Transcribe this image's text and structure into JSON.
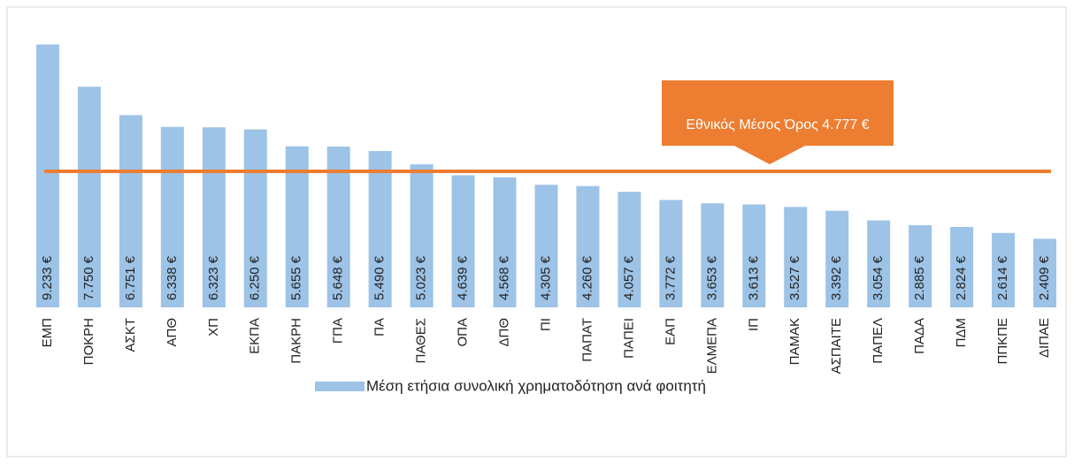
{
  "chart_data": {
    "type": "bar",
    "categories": [
      "ΕΜΠ",
      "ΠΟΚΡΗ",
      "ΑΣΚΤ",
      "ΑΠΘ",
      "ΧΠ",
      "ΕΚΠΑ",
      "ΠΑΚΡΗ",
      "ΓΠΑ",
      "ΠΑ",
      "ΠΑΘΕΣ",
      "ΟΠΑ",
      "ΔΠΘ",
      "ΠΙ",
      "ΠΑΠΑΤ",
      "ΠΑΠΕΙ",
      "ΕΑΠ",
      "ΕΛΜΕΠΑ",
      "ΙΠ",
      "ΠΑΜΑΚ",
      "ΑΣΠΑΙΤΕ",
      "ΠΑΠΕΛ",
      "ΠΑΔΑ",
      "ΠΔΜ",
      "ΠΠΚΠΕ",
      "ΔΙΠΑΕ"
    ],
    "series": [
      {
        "name": "Μέση ετήσια συνολική χρηματοδότηση ανά φοιτητή",
        "color": "#9dc3e6",
        "values": [
          9233,
          7750,
          6751,
          6338,
          6323,
          6250,
          5655,
          5648,
          5490,
          5023,
          4639,
          4568,
          4305,
          4260,
          4057,
          3772,
          3653,
          3613,
          3527,
          3392,
          3054,
          2885,
          2824,
          2614,
          2409
        ],
        "value_labels": [
          "9.233 €",
          "7.750 €",
          "6.751 €",
          "6.338 €",
          "6.323 €",
          "6.250 €",
          "5.655 €",
          "5.648 €",
          "5.490 €",
          "5.023 €",
          "4.639 €",
          "4.568 €",
          "4.305 €",
          "4.260 €",
          "4.057 €",
          "3.772 €",
          "3.653 €",
          "3.613 €",
          "3.527 €",
          "3.392 €",
          "3.054 €",
          "2.885 €",
          "2.824 €",
          "2.614 €",
          "2.409 €"
        ]
      }
    ],
    "ylim": [
      0,
      9400
    ],
    "reference_line": {
      "value": 4777,
      "color": "#ed7d31"
    },
    "annotation": "Εθνικός Μέσος Όρος 4.777 €",
    "legend": "bottom"
  }
}
